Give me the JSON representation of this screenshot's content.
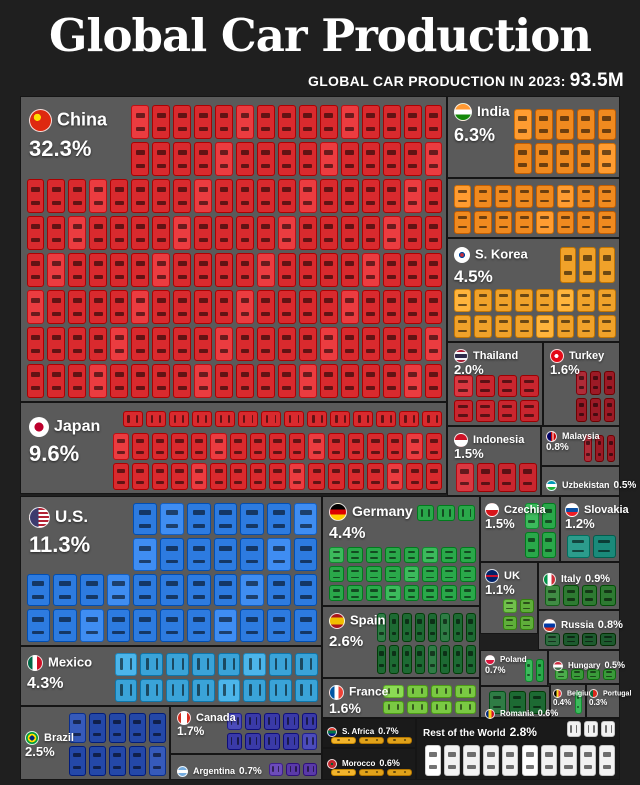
{
  "title": "Global Car Production",
  "subtitle": "GLOBAL CAR PRODUCTION IN 2023:",
  "total": "93.5M",
  "chart_data": {
    "type": "treemap",
    "title": "Global Car Production",
    "subtitle": "GLOBAL CAR PRODUCTION IN 2023: 93.5M",
    "unit": "%",
    "items": [
      {
        "name": "China",
        "value": 32.3,
        "label": "32.3%",
        "color": "#d92a2e",
        "flag": "flag-china-icon"
      },
      {
        "name": "Japan",
        "value": 9.6,
        "label": "9.6%",
        "color": "#d92a2e",
        "flag": "flag-japan-icon"
      },
      {
        "name": "India",
        "value": 6.3,
        "label": "6.3%",
        "color": "#f08a1f",
        "flag": "flag-india-icon"
      },
      {
        "name": "S. Korea",
        "value": 4.5,
        "label": "4.5%",
        "color": "#f0a22a",
        "flag": "flag-south-korea-icon"
      },
      {
        "name": "Thailand",
        "value": 2.0,
        "label": "2.0%",
        "color": "#c9262f",
        "flag": "flag-thailand-icon"
      },
      {
        "name": "Turkey",
        "value": 1.6,
        "label": "1.6%",
        "color": "#9c1a26",
        "flag": "flag-turkey-icon"
      },
      {
        "name": "Indonesia",
        "value": 1.5,
        "label": "1.5%",
        "color": "#c9262f",
        "flag": "flag-indonesia-icon"
      },
      {
        "name": "Malaysia",
        "value": 0.8,
        "label": "0.8%",
        "color": "#9c1a26",
        "flag": "flag-malaysia-icon"
      },
      {
        "name": "Uzbekistan",
        "value": 0.5,
        "label": "0.5%",
        "color": "#9c1a26",
        "flag": "flag-uzbekistan-icon"
      },
      {
        "name": "U.S.",
        "value": 11.3,
        "label": "11.3%",
        "color": "#2d7be0",
        "flag": "flag-us-icon"
      },
      {
        "name": "Mexico",
        "value": 4.3,
        "label": "4.3%",
        "color": "#3aa3d8",
        "flag": "flag-mexico-icon"
      },
      {
        "name": "Brazil",
        "value": 2.5,
        "label": "2.5%",
        "color": "#2448a8",
        "flag": "flag-brazil-icon"
      },
      {
        "name": "Canada",
        "value": 1.7,
        "label": "1.7%",
        "color": "#3a3aa8",
        "flag": "flag-canada-icon"
      },
      {
        "name": "Argentina",
        "value": 0.7,
        "label": "0.7%",
        "color": "#5a3aa8",
        "flag": "flag-argentina-icon"
      },
      {
        "name": "Germany",
        "value": 4.4,
        "label": "4.4%",
        "color": "#2aa84a",
        "flag": "flag-germany-icon"
      },
      {
        "name": "Spain",
        "value": 2.6,
        "label": "2.6%",
        "color": "#1d6a33",
        "flag": "flag-spain-icon"
      },
      {
        "name": "France",
        "value": 1.6,
        "label": "1.6%",
        "color": "#7ac943",
        "flag": "flag-france-icon"
      },
      {
        "name": "Czechia",
        "value": 1.5,
        "label": "1.5%",
        "color": "#2aa84a",
        "flag": "flag-czechia-icon"
      },
      {
        "name": "Slovakia",
        "value": 1.2,
        "label": "1.2%",
        "color": "#1a8a7a",
        "flag": "flag-slovakia-icon"
      },
      {
        "name": "UK",
        "value": 1.1,
        "label": "1.1%",
        "color": "#5fae3a",
        "flag": "flag-uk-icon"
      },
      {
        "name": "Italy",
        "value": 0.9,
        "label": "0.9%",
        "color": "#2e7a32",
        "flag": "flag-italy-icon"
      },
      {
        "name": "Russia",
        "value": 0.8,
        "label": "0.8%",
        "color": "#1d5a2e",
        "flag": "flag-russia-icon"
      },
      {
        "name": "Poland",
        "value": 0.7,
        "label": "0.7%",
        "color": "#2aa84a",
        "flag": "flag-poland-icon"
      },
      {
        "name": "Hungary",
        "value": 0.5,
        "label": "0.5%",
        "color": "#3a9a3a",
        "flag": "flag-hungary-icon"
      },
      {
        "name": "Romania",
        "value": 0.6,
        "label": "0.6%",
        "color": "#1d6a33",
        "flag": "flag-romania-icon"
      },
      {
        "name": "Belgium",
        "value": 0.4,
        "label": "0.4%",
        "color": "#2aa84a",
        "flag": "flag-belgium-icon"
      },
      {
        "name": "Portugal",
        "value": 0.3,
        "label": "0.3%",
        "color": "#2aa84a",
        "flag": "flag-portugal-icon"
      },
      {
        "name": "S. Africa",
        "value": 0.7,
        "label": "0.7%",
        "color": "#e0a21a",
        "flag": "flag-south-africa-icon"
      },
      {
        "name": "Morocco",
        "value": 0.6,
        "label": "0.6%",
        "color": "#e0a21a",
        "flag": "flag-morocco-icon"
      },
      {
        "name": "Rest of the World",
        "value": 2.8,
        "label": "2.8%",
        "color": "#f2f2f2",
        "flag": ""
      }
    ]
  }
}
